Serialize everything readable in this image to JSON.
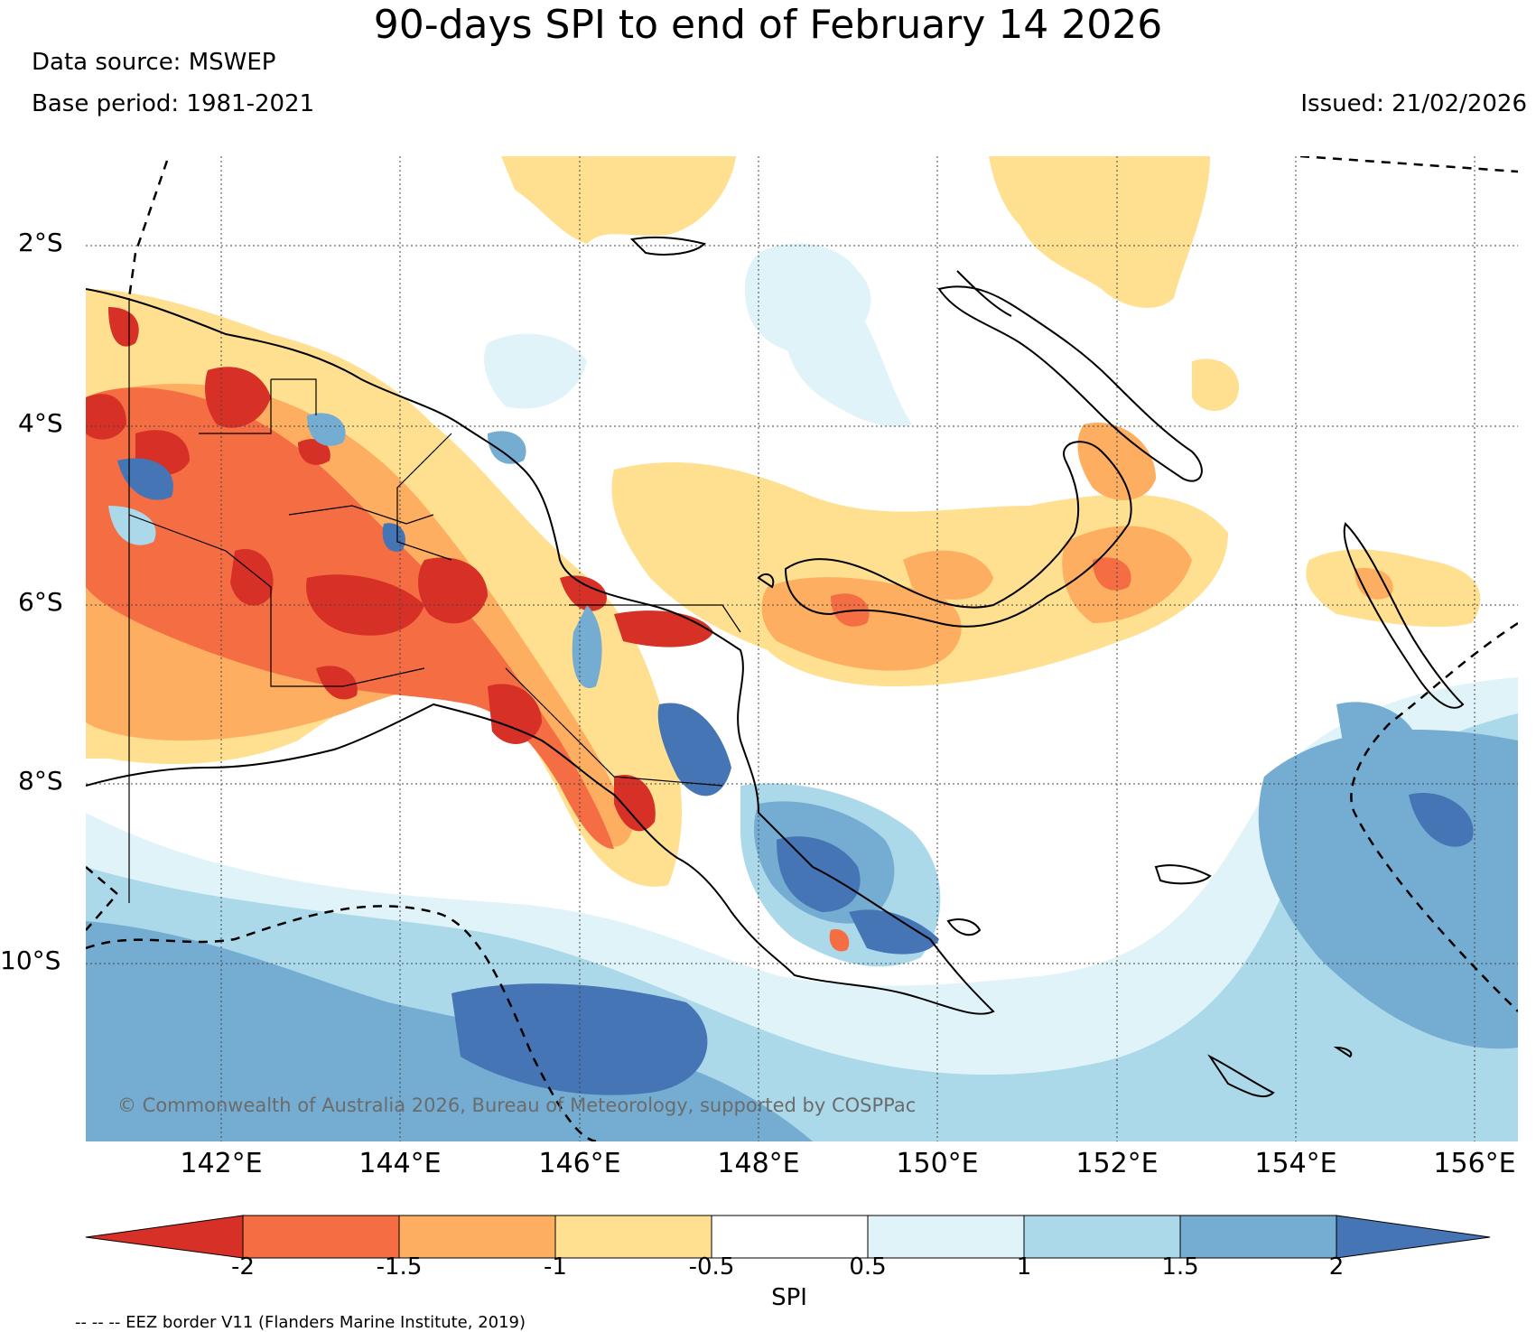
{
  "header": {
    "title": "90-days SPI to end of February 14 2026",
    "data_source": "Data source: MSWEP",
    "base_period": "Base period: 1981-2021",
    "issued": "Issued: 21/02/2026"
  },
  "map": {
    "lat_labels": [
      "2°S",
      "4°S",
      "6°S",
      "8°S",
      "10°S"
    ],
    "lon_labels": [
      "142°E",
      "144°E",
      "146°E",
      "148°E",
      "150°E",
      "152°E",
      "154°E",
      "156°E"
    ],
    "copyright": "© Commonwealth of Australia 2026, Bureau of Meteorology, supported by COSPPac"
  },
  "colorbar": {
    "label": "SPI",
    "ticks": [
      "-2",
      "-1.5",
      "-1",
      "-0.5",
      "0.5",
      "1",
      "1.5",
      "2"
    ],
    "colors": [
      "#d73027",
      "#f46d43",
      "#fdae61",
      "#fee090",
      "#ffffff",
      "#e0f3f8",
      "#abd9e9",
      "#74add1",
      "#4575b4"
    ]
  },
  "footer": {
    "eez_note": "-- -- -- EEZ border V11 (Flanders Marine Institute, 2019)"
  }
}
